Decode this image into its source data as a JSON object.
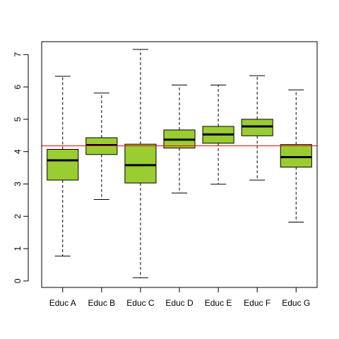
{
  "chart_data": {
    "type": "boxplot",
    "title": "",
    "xlabel": "",
    "ylabel": "",
    "ylim": [
      -0.2,
      7.4
    ],
    "yticks": [
      0,
      1,
      2,
      3,
      4,
      5,
      6,
      7
    ],
    "ytick_labels": [
      "0",
      "1",
      "2",
      "3",
      "4",
      "5",
      "6",
      "7"
    ],
    "categories": [
      "Educ A",
      "Educ B",
      "Educ C",
      "Educ D",
      "Educ E",
      "Educ F",
      "Educ G"
    ],
    "boxes": [
      {
        "min": 0.77,
        "q1": 3.12,
        "median": 3.73,
        "q3": 4.07,
        "max": 6.33
      },
      {
        "min": 2.52,
        "q1": 3.91,
        "median": 4.2,
        "q3": 4.43,
        "max": 5.81
      },
      {
        "min": 0.1,
        "q1": 3.03,
        "median": 3.58,
        "q3": 4.23,
        "max": 7.16
      },
      {
        "min": 2.72,
        "q1": 4.11,
        "median": 4.37,
        "q3": 4.67,
        "max": 6.06
      },
      {
        "min": 2.99,
        "q1": 4.26,
        "median": 4.53,
        "q3": 4.78,
        "max": 6.06
      },
      {
        "min": 3.12,
        "q1": 4.49,
        "median": 4.78,
        "q3": 5.0,
        "max": 6.35
      },
      {
        "min": 1.82,
        "q1": 3.52,
        "median": 3.83,
        "q3": 4.22,
        "max": 5.91
      }
    ],
    "reference_line": {
      "y": 4.18,
      "color": "#ff0000"
    },
    "box_color": "#9ACD32",
    "grid": false,
    "legend": "none"
  }
}
